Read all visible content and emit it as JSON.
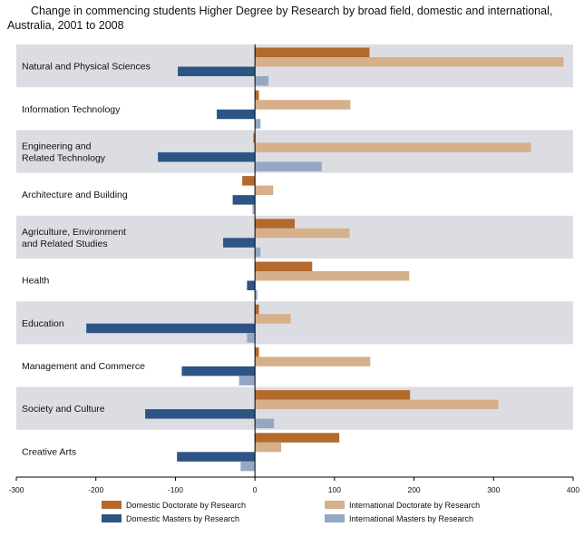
{
  "chart_data": {
    "type": "bar",
    "orientation": "horizontal",
    "title": "Change in commencing students Higher Degree by Research by broad field, domestic and international, Australia, 2001 to 2008",
    "title_lines": [
      "Change in commencing students Higher Degree by Research by broad field, domestic and international,",
      "Australia, 2001 to 2008"
    ],
    "categories": [
      [
        "Natural and Physical Sciences"
      ],
      [
        "Information Technology"
      ],
      [
        "Engineering and",
        "Related Technology"
      ],
      [
        "Architecture and Building"
      ],
      [
        "Agriculture, Environment",
        "and Related Studies"
      ],
      [
        "Health"
      ],
      [
        "Education"
      ],
      [
        "Management and Commerce"
      ],
      [
        "Society and Culture"
      ],
      [
        "Creative Arts"
      ]
    ],
    "series": [
      {
        "name": "Domestic Doctorate by Research",
        "color": "#b26a2e",
        "values": [
          144,
          5,
          -2,
          -16,
          50,
          72,
          5,
          5,
          195,
          106
        ]
      },
      {
        "name": "International Doctorate by Research",
        "color": "#d5b08a",
        "values": [
          388,
          120,
          347,
          23,
          119,
          194,
          45,
          145,
          306,
          33
        ]
      },
      {
        "name": "Domestic Masters by Research",
        "color": "#2c5585",
        "values": [
          -97,
          -48,
          -122,
          -28,
          -40,
          -10,
          -212,
          -92,
          -138,
          -98
        ]
      },
      {
        "name": "International Masters by Research",
        "color": "#94a8c4",
        "values": [
          17,
          7,
          84,
          -3,
          7,
          3,
          -10,
          -20,
          24,
          -18
        ]
      }
    ],
    "xlim": [
      -300,
      400
    ],
    "xticks": [
      -300,
      -200,
      -100,
      0,
      100,
      200,
      300,
      400
    ],
    "grid": false,
    "band_color": "#dcdde2",
    "legend_position": "bottom"
  }
}
